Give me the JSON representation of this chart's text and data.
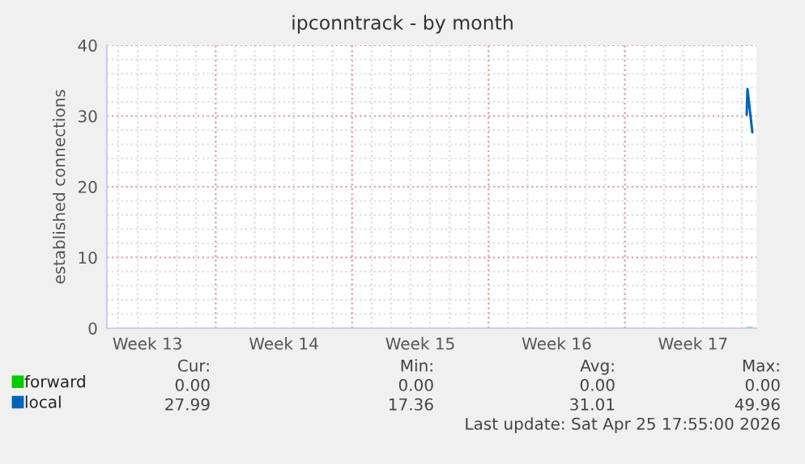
{
  "chart_data": {
    "type": "line",
    "title": "ipconntrack - by month",
    "ylabel": "established connections",
    "series": [
      {
        "name": "forward",
        "color": "#00cc00",
        "x": [
          "2026-04-25T06:00",
          "2026-04-25T13:00"
        ],
        "values": [
          0,
          0
        ]
      },
      {
        "name": "local",
        "color": "#0066b3",
        "x": [
          "2026-04-25T06:00",
          "2026-04-25T07:00",
          "2026-04-25T13:00"
        ],
        "values": [
          30.2,
          33.8,
          27.7
        ]
      }
    ],
    "xlim": [
      "2026-03-23T10:00",
      "2026-04-25T18:00"
    ],
    "xticks": [
      {
        "value": "2026-03-25T12:00",
        "label": "Week 13"
      },
      {
        "value": "2026-03-29",
        "label": null
      },
      {
        "value": "2026-04-01T12:00",
        "label": "Week 14"
      },
      {
        "value": "2026-04-05",
        "label": null
      },
      {
        "value": "2026-04-08T12:00",
        "label": "Week 15"
      },
      {
        "value": "2026-04-12",
        "label": null
      },
      {
        "value": "2026-04-15T12:00",
        "label": "Week 16"
      },
      {
        "value": "2026-04-19",
        "label": null
      },
      {
        "value": "2026-04-22T12:00",
        "label": "Week 17"
      }
    ],
    "ylim": [
      0,
      40
    ],
    "yticks": [
      0,
      10,
      20,
      30,
      40
    ],
    "grid": true,
    "legend": "bottom",
    "marker": "none",
    "line_style": "solid",
    "annotations": [
      "Cur:",
      "Min:",
      "Avg:",
      "Max:",
      "0.00",
      "0.00",
      "0.00",
      "0.00",
      "27.99",
      "17.36",
      "31.01",
      "49.96",
      "Last update: Sat Apr 25 17:55:00 2026"
    ]
  }
}
